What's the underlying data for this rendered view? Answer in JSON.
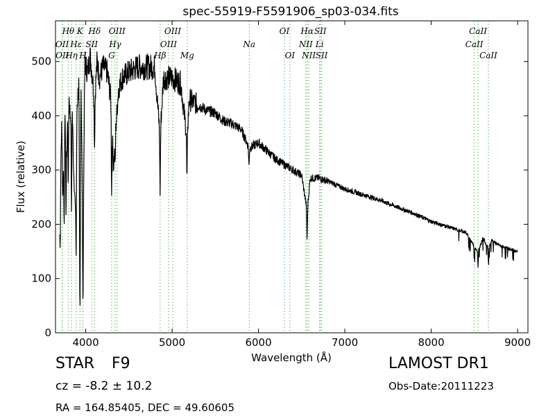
{
  "chart_data": {
    "type": "line",
    "title": "spec-55919-F5591906_sp03-034.fits",
    "xlabel": "Wavelength (Å)",
    "ylabel": "Flux (relative)",
    "xlim": [
      3650,
      9120
    ],
    "ylim": [
      0,
      575
    ],
    "xticks": [
      4000,
      5000,
      6000,
      7000,
      8000,
      9000
    ],
    "yticks": [
      0,
      100,
      200,
      300,
      400,
      500
    ],
    "grid": false,
    "line_color": "#000000",
    "marker_color": "#5fb85f",
    "spectrum_anchors": [
      [
        3700,
        230
      ],
      [
        3720,
        380
      ],
      [
        3740,
        300
      ],
      [
        3760,
        420
      ],
      [
        3780,
        330
      ],
      [
        3800,
        460
      ],
      [
        3820,
        400
      ],
      [
        3840,
        440
      ],
      [
        3860,
        300
      ],
      [
        3880,
        230
      ],
      [
        3900,
        420
      ],
      [
        3920,
        460
      ],
      [
        3933,
        130
      ],
      [
        3945,
        470
      ],
      [
        3968,
        160
      ],
      [
        3990,
        500
      ],
      [
        4020,
        480
      ],
      [
        4050,
        510
      ],
      [
        4080,
        470
      ],
      [
        4102,
        420
      ],
      [
        4130,
        500
      ],
      [
        4160,
        470
      ],
      [
        4200,
        490
      ],
      [
        4250,
        480
      ],
      [
        4300,
        420
      ],
      [
        4320,
        300
      ],
      [
        4340,
        360
      ],
      [
        4380,
        450
      ],
      [
        4420,
        470
      ],
      [
        4500,
        480
      ],
      [
        4600,
        490
      ],
      [
        4700,
        490
      ],
      [
        4800,
        490
      ],
      [
        4861,
        360
      ],
      [
        4900,
        470
      ],
      [
        5000,
        470
      ],
      [
        5100,
        460
      ],
      [
        5172,
        360
      ],
      [
        5200,
        430
      ],
      [
        5300,
        420
      ],
      [
        5400,
        410
      ],
      [
        5500,
        405
      ],
      [
        5600,
        390
      ],
      [
        5700,
        385
      ],
      [
        5800,
        375
      ],
      [
        5893,
        340
      ],
      [
        6000,
        350
      ],
      [
        6100,
        335
      ],
      [
        6200,
        320
      ],
      [
        6300,
        310
      ],
      [
        6400,
        300
      ],
      [
        6500,
        290
      ],
      [
        6563,
        225
      ],
      [
        6600,
        285
      ],
      [
        6700,
        285
      ],
      [
        6800,
        280
      ],
      [
        7000,
        265
      ],
      [
        7200,
        255
      ],
      [
        7400,
        245
      ],
      [
        7600,
        232
      ],
      [
        7800,
        220
      ],
      [
        8000,
        205
      ],
      [
        8200,
        195
      ],
      [
        8400,
        185
      ],
      [
        8498,
        160
      ],
      [
        8542,
        150
      ],
      [
        8600,
        175
      ],
      [
        8662,
        155
      ],
      [
        8700,
        170
      ],
      [
        8800,
        160
      ],
      [
        8900,
        155
      ],
      [
        9000,
        150
      ]
    ],
    "spectrum_dips": [
      [
        3704,
        0.6
      ],
      [
        3733,
        0.75
      ],
      [
        3750,
        0.55
      ],
      [
        3771,
        0.6
      ],
      [
        3798,
        0.6
      ],
      [
        3835,
        0.5
      ],
      [
        3889,
        0.45
      ],
      [
        3933,
        0.28
      ],
      [
        3968,
        0.32
      ],
      [
        4102,
        0.82
      ],
      [
        4300,
        0.62
      ],
      [
        4340,
        0.85
      ],
      [
        4861,
        0.72
      ],
      [
        5172,
        0.78
      ],
      [
        5890,
        0.9
      ],
      [
        6563,
        0.76
      ],
      [
        8498,
        0.85
      ],
      [
        8542,
        0.8
      ],
      [
        8662,
        0.85
      ]
    ],
    "lines": [
      {
        "label": "OII",
        "x": 3727,
        "row": 2
      },
      {
        "label": "OII",
        "x": 3729,
        "row": 3
      },
      {
        "label": "Hθ",
        "x": 3798,
        "row": 1
      },
      {
        "label": "Hη",
        "x": 3835,
        "row": 3
      },
      {
        "label": "Hε",
        "x": 3889,
        "row": 2
      },
      {
        "label": "K",
        "x": 3933,
        "row": 1
      },
      {
        "label": "H",
        "x": 3968,
        "row": 3
      },
      {
        "label": "SII",
        "x": 4070,
        "row": 2
      },
      {
        "label": "Hδ",
        "x": 4102,
        "row": 1
      },
      {
        "label": "G",
        "x": 4300,
        "row": 3
      },
      {
        "label": "Hγ",
        "x": 4340,
        "row": 2
      },
      {
        "label": "OIII",
        "x": 4363,
        "row": 1
      },
      {
        "label": "Hβ",
        "x": 4861,
        "row": 3
      },
      {
        "label": "OIII",
        "x": 4959,
        "row": 2
      },
      {
        "label": "OIII",
        "x": 5007,
        "row": 1
      },
      {
        "label": "Mg",
        "x": 5175,
        "row": 3
      },
      {
        "label": "Na",
        "x": 5893,
        "row": 2
      },
      {
        "label": "OI",
        "x": 6300,
        "row": 1
      },
      {
        "label": "OI",
        "x": 6364,
        "row": 3
      },
      {
        "label": "NII",
        "x": 6548,
        "row": 2
      },
      {
        "label": "Hα",
        "x": 6563,
        "row": 1
      },
      {
        "label": "NII",
        "x": 6583,
        "row": 3
      },
      {
        "label": "Li",
        "x": 6708,
        "row": 2
      },
      {
        "label": "SII",
        "x": 6716,
        "row": 1
      },
      {
        "label": "SII",
        "x": 6731,
        "row": 3
      },
      {
        "label": "CaII",
        "x": 8498,
        "row": 2
      },
      {
        "label": "CaII",
        "x": 8542,
        "row": 1
      },
      {
        "label": "CaII",
        "x": 8662,
        "row": 3
      }
    ]
  },
  "info": {
    "class": "STAR",
    "subclass": "F9",
    "cz": "cz = -8.2 ± 10.2",
    "radec": "RA = 164.85405, DEC = 49.60605",
    "survey": "LAMOST DR1",
    "obs_date": "Obs-Date:20111223"
  }
}
